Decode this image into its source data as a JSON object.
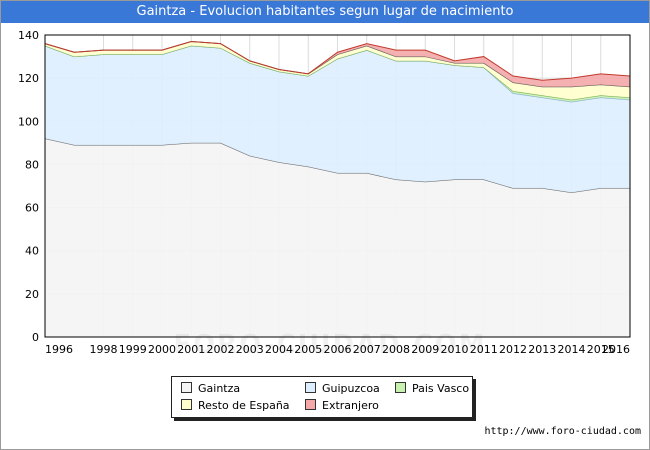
{
  "title": "Gaintza - Evolucion habitantes segun lugar de nacimiento",
  "source": "http://www.foro-ciudad.com",
  "watermark": "FORO-CIUDAD.COM",
  "chart_data": {
    "type": "area",
    "stacked": true,
    "x": [
      1996,
      1997,
      1998,
      1999,
      2000,
      2001,
      2002,
      2003,
      2004,
      2005,
      2006,
      2007,
      2008,
      2009,
      2010,
      2011,
      2012,
      2013,
      2014,
      2015,
      2016
    ],
    "xticks": [
      1996,
      1998,
      1999,
      2000,
      2001,
      2002,
      2003,
      2004,
      2005,
      2006,
      2007,
      2008,
      2009,
      2010,
      2011,
      2012,
      2013,
      2014,
      2015,
      2016
    ],
    "ylim": [
      0,
      140
    ],
    "yticks": [
      0,
      20,
      40,
      60,
      80,
      100,
      120,
      140
    ],
    "grid": true,
    "legend_position": "bottom",
    "series": [
      {
        "name": "Gaintza",
        "color": "#f4f4f4",
        "stroke": "#666666",
        "values": [
          92,
          89,
          89,
          89,
          89,
          90,
          90,
          84,
          81,
          79,
          76,
          76,
          73,
          72,
          73,
          73,
          69,
          69,
          67,
          69,
          69
        ]
      },
      {
        "name": "Guipuzcoa",
        "color": "#ddeeff",
        "stroke": "#7fa6cf",
        "values": [
          43,
          41,
          42,
          42,
          42,
          45,
          44,
          43,
          42,
          42,
          53,
          57,
          55,
          56,
          53,
          52,
          44,
          42,
          42,
          42,
          41
        ]
      },
      {
        "name": "Pais Vasco",
        "color": "#c8f0b0",
        "stroke": "#6aa84f",
        "values": [
          0,
          0,
          0,
          0,
          0,
          0,
          0,
          0,
          0,
          0,
          0,
          0,
          0,
          0,
          0,
          0,
          1,
          1,
          1,
          1,
          1
        ]
      },
      {
        "name": "Resto de España",
        "color": "#ffffcc",
        "stroke": "#555555",
        "values": [
          1,
          2,
          2,
          2,
          2,
          2,
          2,
          1,
          1,
          1,
          2,
          2,
          2,
          2,
          1,
          2,
          4,
          4,
          6,
          5,
          5
        ]
      },
      {
        "name": "Extranjero",
        "color": "#f4a8a8",
        "stroke": "#c0392b",
        "values": [
          0,
          0,
          0,
          0,
          0,
          0,
          0,
          0,
          0,
          0,
          1,
          1,
          3,
          3,
          1,
          3,
          3,
          3,
          4,
          5,
          5
        ]
      }
    ]
  }
}
